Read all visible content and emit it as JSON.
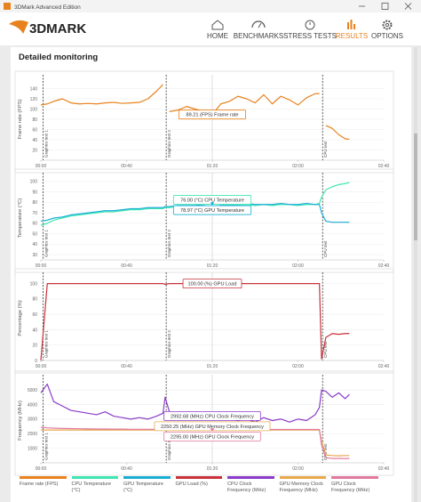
{
  "app_title": "3DMark Advanced Edition",
  "logo": "3DMARK",
  "nav": [
    "HOME",
    "BENCHMARKS",
    "STRESS TESTS",
    "RESULTS",
    "OPTIONS"
  ],
  "section_title": "Detailed monitoring",
  "test_markers": [
    {
      "label": "Graphics test 1",
      "x": 1
    },
    {
      "label": "Graphics test 2",
      "x": 58.5
    },
    {
      "label": "CPU test",
      "x": 131.5
    }
  ],
  "chart_data": [
    {
      "type": "line",
      "ylabel": "Frame rate (FPS)",
      "cursor_x": 80,
      "xlim": [
        0,
        160
      ],
      "xticks": [
        {
          "value": 0,
          "label": "00:00"
        },
        {
          "value": 40,
          "label": "00:40"
        },
        {
          "value": 80,
          "label": "01:20"
        },
        {
          "value": 120,
          "label": "02:00"
        },
        {
          "value": 160,
          "label": "02:40"
        }
      ],
      "ylim": [
        0,
        160
      ],
      "yticks": [
        20,
        40,
        60,
        80,
        100,
        120,
        140
      ],
      "grid": true,
      "x": [
        0,
        3,
        6,
        10,
        14,
        18,
        22,
        26,
        30,
        34,
        38,
        42,
        46,
        50,
        54,
        57,
        58,
        60,
        64,
        68,
        72,
        76,
        80,
        84,
        88,
        92,
        96,
        100,
        104,
        108,
        112,
        116,
        120,
        124,
        128,
        130,
        131,
        133,
        136,
        139,
        142,
        144
      ],
      "series": [
        {
          "name": "Frame rate (FPS)",
          "color": "#e8821e",
          "tooltip": "89.21 (FPS) Frame rate",
          "values": [
            108,
            110,
            115,
            120,
            112,
            110,
            111,
            110,
            112,
            113,
            111,
            112,
            113,
            120,
            135,
            148,
            null,
            95,
            98,
            105,
            100,
            95,
            89.21,
            110,
            115,
            125,
            120,
            112,
            128,
            110,
            125,
            118,
            108,
            122,
            130,
            130,
            null,
            68,
            62,
            50,
            42,
            41
          ]
        }
      ]
    },
    {
      "type": "line",
      "ylabel": "Temperature (°C)",
      "cursor_x": 80,
      "xlim": [
        0,
        160
      ],
      "xticks": [
        {
          "value": 0,
          "label": "00:00"
        },
        {
          "value": 40,
          "label": "00:40"
        },
        {
          "value": 80,
          "label": "01:20"
        },
        {
          "value": 120,
          "label": "02:00"
        },
        {
          "value": 160,
          "label": "02:40"
        }
      ],
      "ylim": [
        25,
        105
      ],
      "yticks": [
        30,
        40,
        50,
        60,
        70,
        80,
        90,
        100
      ],
      "grid": true,
      "x": [
        0,
        3,
        6,
        10,
        14,
        18,
        22,
        26,
        30,
        34,
        38,
        42,
        46,
        50,
        54,
        57,
        58,
        60,
        64,
        68,
        72,
        76,
        80,
        84,
        88,
        92,
        96,
        100,
        104,
        108,
        112,
        116,
        120,
        124,
        128,
        130,
        131,
        133,
        136,
        139,
        142,
        144
      ],
      "series": [
        {
          "name": "CPU Temperature (°C)",
          "color": "#3fe6b4",
          "tooltip": "76.00 (°C) CPU Temperature",
          "values": [
            58,
            60,
            63,
            65,
            67,
            68,
            69,
            70,
            71,
            71,
            72,
            73,
            73,
            74,
            74,
            74,
            75,
            75,
            76,
            76,
            76,
            76,
            76,
            77,
            77,
            77,
            78,
            77,
            78,
            77,
            78,
            78,
            77,
            78,
            78,
            79,
            85,
            92,
            95,
            97,
            98,
            99
          ]
        },
        {
          "name": "GPU Temperature (°C)",
          "color": "#1aaed4",
          "tooltip": "78.97 (°C) GPU Temperature",
          "values": [
            62,
            63,
            65,
            66,
            68,
            69,
            70,
            71,
            72,
            72,
            73,
            74,
            74,
            75,
            75,
            75,
            76,
            76,
            77,
            77,
            77,
            78,
            78.97,
            78,
            78,
            78,
            79,
            78,
            78,
            78,
            79,
            78,
            78,
            79,
            78,
            78,
            70,
            62,
            61,
            61,
            61,
            61
          ]
        }
      ]
    },
    {
      "type": "line",
      "ylabel": "Percentage (%)",
      "cursor_x": 80,
      "xlim": [
        0,
        160
      ],
      "xticks": [
        {
          "value": 0,
          "label": "00:00"
        },
        {
          "value": 40,
          "label": "00:40"
        },
        {
          "value": 80,
          "label": "01:20"
        },
        {
          "value": 120,
          "label": "02:00"
        },
        {
          "value": 160,
          "label": "02:40"
        }
      ],
      "ylim": [
        0,
        110
      ],
      "yticks": [
        0,
        20,
        40,
        60,
        80,
        100
      ],
      "grid": true,
      "x": [
        0,
        3,
        6,
        10,
        14,
        18,
        22,
        26,
        30,
        34,
        38,
        42,
        46,
        50,
        54,
        57,
        58,
        60,
        64,
        68,
        72,
        76,
        80,
        84,
        88,
        92,
        96,
        100,
        104,
        108,
        112,
        116,
        120,
        124,
        128,
        130,
        131,
        133,
        136,
        139,
        142,
        144
      ],
      "series": [
        {
          "name": "GPU Load (%)",
          "color": "#c8323a",
          "tooltip": "100.00 (%) GPU Load",
          "values": [
            0,
            100,
            100,
            100,
            100,
            100,
            100,
            100,
            100,
            100,
            100,
            100,
            100,
            100,
            100,
            100,
            99,
            100,
            100,
            100,
            100,
            100,
            100,
            100,
            100,
            100,
            100,
            100,
            100,
            100,
            100,
            100,
            100,
            100,
            100,
            100,
            2,
            30,
            35,
            34,
            35,
            35
          ]
        }
      ]
    },
    {
      "type": "line",
      "ylabel": "Frequency (MHz)",
      "cursor_x": 80,
      "xlim": [
        0,
        160
      ],
      "xticks": [
        {
          "value": 0,
          "label": "00:00"
        },
        {
          "value": 40,
          "label": "00:40"
        },
        {
          "value": 80,
          "label": "01:20"
        },
        {
          "value": 120,
          "label": "02:00"
        },
        {
          "value": 160,
          "label": "02:40"
        }
      ],
      "ylim": [
        0,
        5800
      ],
      "yticks": [
        1000,
        2000,
        3000,
        4000,
        5000
      ],
      "grid": true,
      "x": [
        0,
        3,
        6,
        10,
        14,
        18,
        22,
        26,
        30,
        34,
        38,
        42,
        46,
        50,
        54,
        57,
        58,
        60,
        64,
        68,
        72,
        76,
        80,
        84,
        88,
        92,
        96,
        100,
        104,
        108,
        112,
        116,
        120,
        124,
        128,
        130,
        131,
        133,
        136,
        139,
        142,
        144
      ],
      "series": [
        {
          "name": "CPU Clock Frequency (MHz)",
          "color": "#8a3cc8",
          "tooltip": "2992.68 (MHz) CPU Clock Frequency",
          "values": [
            4800,
            5400,
            4200,
            3900,
            3600,
            3500,
            3400,
            3300,
            3500,
            3200,
            3100,
            3000,
            3100,
            3000,
            3200,
            3400,
            4500,
            3500,
            3400,
            3300,
            3200,
            3000,
            2992.68,
            3100,
            3000,
            2900,
            3000,
            2800,
            3100,
            2900,
            3000,
            2800,
            3000,
            2900,
            3300,
            3800,
            5000,
            4900,
            4500,
            4800,
            4400,
            4700
          ]
        },
        {
          "name": "GPU Memory Clock Frequency (MHz)",
          "color": "#e8a84c",
          "tooltip": "2250.25 (MHz) GPU Memory Clock Frequency",
          "values": [
            2250,
            2250,
            2250,
            2250,
            2250,
            2250,
            2250,
            2250,
            2250,
            2250,
            2250,
            2250,
            2250,
            2250,
            2250,
            2250,
            2250,
            2250,
            2250,
            2250,
            2250,
            2250,
            2250.25,
            2250,
            2250,
            2250,
            2250,
            2250,
            2250,
            2250,
            2250,
            2250,
            2250,
            2250,
            2250,
            2250,
            1500,
            550,
            500,
            480,
            500,
            500
          ]
        },
        {
          "name": "GPU Clock Frequency (MHz)",
          "color": "#e27aa0",
          "tooltip": "2295.00 (MHz) GPU Clock Frequency",
          "values": [
            2450,
            2400,
            2380,
            2360,
            2350,
            2340,
            2330,
            2320,
            2320,
            2310,
            2310,
            2300,
            2300,
            2300,
            2300,
            2300,
            2300,
            2300,
            2300,
            2300,
            2300,
            2295,
            2295,
            2295,
            2295,
            2295,
            2295,
            2295,
            2290,
            2290,
            2290,
            2290,
            2290,
            2290,
            2290,
            2290,
            1200,
            350,
            300,
            300,
            290,
            300
          ]
        }
      ]
    }
  ]
}
